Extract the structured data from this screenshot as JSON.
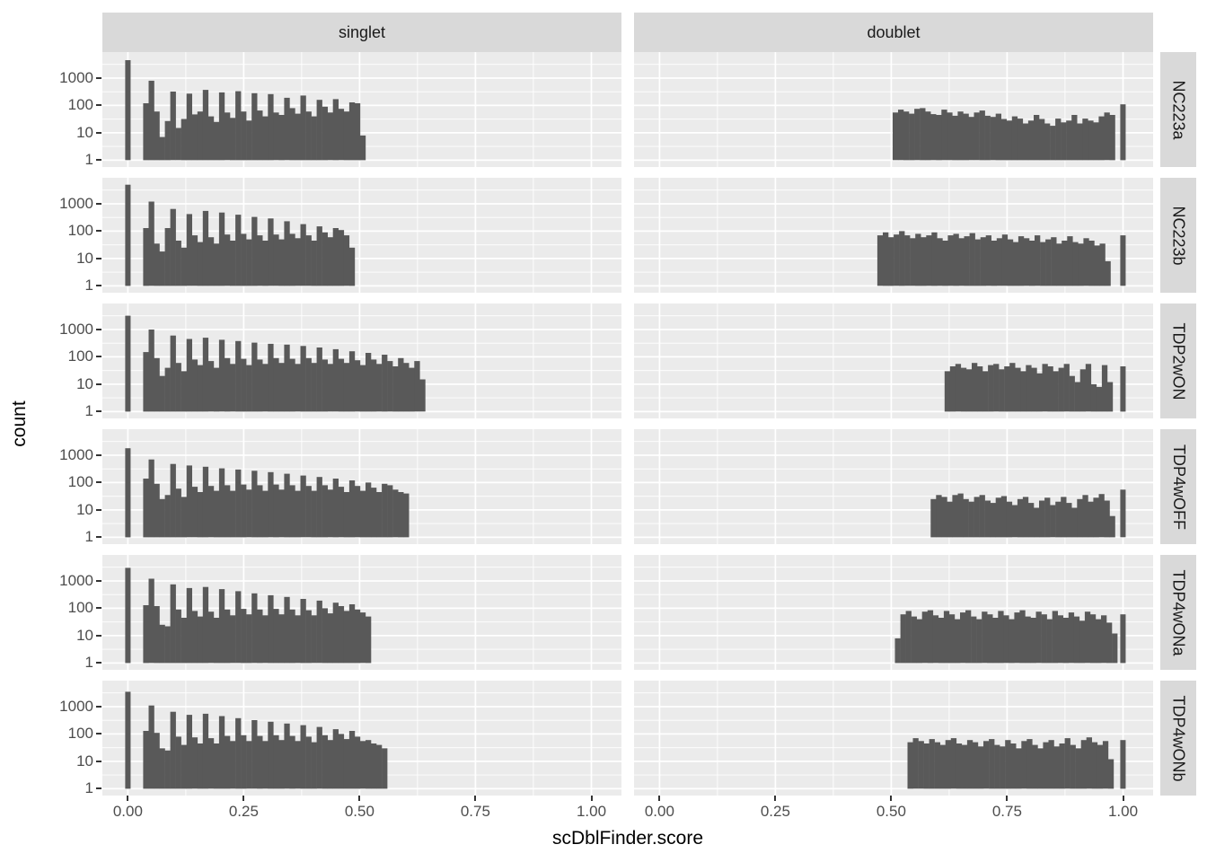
{
  "figure": {
    "x_axis": {
      "label": "scDblFinder.score",
      "tick_labels": [
        "0.00",
        "0.25",
        "0.50",
        "0.75",
        "1.00"
      ],
      "tick_values": [
        0,
        0.25,
        0.5,
        0.75,
        1.0
      ]
    },
    "y_axis": {
      "label": "count",
      "tick_labels": [
        "1000",
        "100",
        "10",
        "1"
      ],
      "tick_values": [
        1000,
        100,
        10,
        1
      ]
    },
    "facet_columns": [
      "singlet",
      "doublet"
    ],
    "facet_rows": [
      "NC223a",
      "NC223b",
      "TDP2wON",
      "TDP4wOFF",
      "TDP4wONa",
      "TDP4wONb"
    ],
    "colors": {
      "bar_fill": "#595959",
      "panel_background": "#EBEBEB",
      "strip_background": "#D9D9D9",
      "grid_line": "#FFFFFF",
      "axis_text": "#4D4D4D",
      "strip_text": "#1A1A1A",
      "tick_mark": "#333333",
      "title_text": "#000000"
    }
  },
  "chart_data": {
    "type": "bar",
    "subtype": "faceted-histogram",
    "title": "",
    "xlabel": "scDblFinder.score",
    "ylabel": "count",
    "x_range": [
      -0.055,
      1.065
    ],
    "y_scale": "log10",
    "y_log_range": [
      -0.25,
      3.95
    ],
    "y_major_gridlines": [
      1,
      10,
      100,
      1000
    ],
    "y_minor_gridlines_log": [
      0.5,
      1.5,
      2.5,
      3.5
    ],
    "x_major_gridlines": [
      0,
      0.25,
      0.5,
      0.75,
      1.0
    ],
    "x_minor_gridlines": [
      0.125,
      0.375,
      0.625,
      0.875
    ],
    "binwidth": 0.0117,
    "panels": [
      {
        "row": "NC223a",
        "col": "singlet",
        "start": 0.033,
        "spike": {
          "x": 0.0,
          "count": 4500
        },
        "counts": [
          120,
          800,
          60,
          7,
          27,
          320,
          15,
          32,
          270,
          47,
          60,
          370,
          40,
          25,
          300,
          55,
          35,
          330,
          60,
          28,
          280,
          65,
          40,
          260,
          55,
          45,
          190,
          80,
          50,
          230,
          60,
          40,
          160,
          90,
          55,
          170,
          75,
          60,
          130,
          120,
          8
        ]
      },
      {
        "row": "NC223a",
        "col": "doublet",
        "start": 0.503,
        "spike": {
          "x": 1.0,
          "count": 110
        },
        "counts": [
          55,
          70,
          60,
          50,
          75,
          80,
          60,
          48,
          45,
          70,
          55,
          42,
          60,
          50,
          38,
          55,
          65,
          42,
          38,
          50,
          32,
          28,
          40,
          33,
          22,
          28,
          45,
          32,
          22,
          18,
          33,
          24,
          28,
          45,
          22,
          33,
          28,
          24,
          40,
          55,
          45
        ]
      },
      {
        "row": "NC223b",
        "col": "singlet",
        "start": 0.033,
        "spike": {
          "x": 0.0,
          "count": 5000
        },
        "counts": [
          130,
          1200,
          35,
          18,
          130,
          650,
          45,
          25,
          420,
          70,
          40,
          550,
          60,
          35,
          480,
          75,
          45,
          400,
          80,
          50,
          330,
          70,
          45,
          290,
          75,
          50,
          230,
          80,
          55,
          180,
          70,
          45,
          150,
          90,
          60,
          130,
          110,
          70,
          25
        ]
      },
      {
        "row": "NC223b",
        "col": "doublet",
        "start": 0.47,
        "spike": {
          "x": 1.0,
          "count": 70
        },
        "counts": [
          70,
          90,
          60,
          75,
          100,
          70,
          55,
          80,
          60,
          70,
          90,
          55,
          45,
          70,
          80,
          55,
          65,
          85,
          50,
          60,
          70,
          45,
          55,
          75,
          50,
          40,
          65,
          55,
          45,
          70,
          40,
          50,
          60,
          35,
          45,
          65,
          40,
          35,
          55,
          45,
          30,
          35,
          8
        ]
      },
      {
        "row": "TDP2wON",
        "col": "singlet",
        "start": 0.033,
        "spike": {
          "x": 0.0,
          "count": 3200
        },
        "counts": [
          150,
          1000,
          90,
          20,
          40,
          600,
          60,
          30,
          450,
          80,
          50,
          500,
          70,
          40,
          420,
          90,
          55,
          380,
          85,
          50,
          330,
          80,
          55,
          300,
          90,
          60,
          280,
          85,
          55,
          250,
          90,
          60,
          220,
          80,
          55,
          190,
          85,
          60,
          160,
          75,
          50,
          140,
          80,
          55,
          120,
          70,
          45,
          90,
          60,
          40,
          70,
          15
        ]
      },
      {
        "row": "TDP2wON",
        "col": "doublet",
        "start": 0.615,
        "spike": {
          "x": 1.0,
          "count": 45
        },
        "counts": [
          30,
          45,
          55,
          40,
          35,
          60,
          45,
          30,
          50,
          55,
          35,
          45,
          60,
          40,
          30,
          50,
          40,
          25,
          55,
          45,
          30,
          40,
          55,
          20,
          12,
          35,
          55,
          10,
          8,
          50,
          12
        ]
      },
      {
        "row": "TDP4wOFF",
        "col": "singlet",
        "start": 0.033,
        "spike": {
          "x": 0.0,
          "count": 1800
        },
        "counts": [
          140,
          700,
          90,
          25,
          35,
          480,
          60,
          30,
          420,
          70,
          45,
          380,
          75,
          50,
          330,
          80,
          50,
          300,
          85,
          55,
          270,
          80,
          50,
          240,
          85,
          55,
          210,
          80,
          50,
          180,
          75,
          50,
          160,
          80,
          55,
          140,
          70,
          45,
          120,
          75,
          50,
          100,
          65,
          45,
          90,
          80,
          55,
          45,
          40
        ]
      },
      {
        "row": "TDP4wOFF",
        "col": "doublet",
        "start": 0.585,
        "spike": {
          "x": 1.0,
          "count": 55
        },
        "counts": [
          25,
          35,
          30,
          20,
          35,
          40,
          25,
          20,
          30,
          35,
          22,
          18,
          28,
          32,
          20,
          15,
          25,
          30,
          18,
          12,
          22,
          28,
          15,
          20,
          30,
          18,
          12,
          25,
          35,
          20,
          28,
          38,
          22,
          6
        ]
      },
      {
        "row": "TDP4wONa",
        "col": "singlet",
        "start": 0.033,
        "spike": {
          "x": 0.0,
          "count": 3000
        },
        "counts": [
          130,
          1200,
          120,
          25,
          22,
          750,
          90,
          45,
          550,
          80,
          50,
          600,
          75,
          45,
          500,
          90,
          55,
          420,
          95,
          60,
          350,
          90,
          55,
          300,
          95,
          60,
          260,
          90,
          55,
          220,
          85,
          55,
          190,
          100,
          65,
          160,
          120,
          80,
          140,
          90,
          70,
          50
        ]
      },
      {
        "row": "TDP4wONa",
        "col": "doublet",
        "start": 0.508,
        "spike": {
          "x": 1.0,
          "count": 60
        },
        "counts": [
          8,
          60,
          80,
          50,
          40,
          75,
          85,
          55,
          45,
          80,
          60,
          40,
          70,
          85,
          50,
          40,
          75,
          60,
          45,
          80,
          55,
          40,
          70,
          85,
          50,
          45,
          75,
          60,
          40,
          80,
          55,
          45,
          70,
          50,
          35,
          75,
          60,
          40,
          55,
          30,
          12
        ]
      },
      {
        "row": "TDP4wONb",
        "col": "singlet",
        "start": 0.033,
        "spike": {
          "x": 0.0,
          "count": 3500
        },
        "counts": [
          130,
          1100,
          110,
          30,
          25,
          650,
          80,
          40,
          500,
          75,
          45,
          550,
          70,
          45,
          450,
          85,
          55,
          380,
          90,
          55,
          320,
          85,
          55,
          280,
          90,
          60,
          240,
          85,
          55,
          210,
          80,
          50,
          180,
          90,
          60,
          150,
          100,
          65,
          130,
          80,
          55,
          60,
          45,
          40,
          30
        ]
      },
      {
        "row": "TDP4wONb",
        "col": "doublet",
        "start": 0.535,
        "spike": {
          "x": 1.0,
          "count": 60
        },
        "counts": [
          50,
          70,
          55,
          45,
          65,
          50,
          40,
          60,
          70,
          45,
          40,
          60,
          50,
          35,
          55,
          65,
          40,
          35,
          60,
          45,
          30,
          55,
          65,
          40,
          30,
          50,
          60,
          35,
          45,
          70,
          40,
          30,
          60,
          75,
          50,
          40,
          55,
          12
        ]
      }
    ]
  }
}
